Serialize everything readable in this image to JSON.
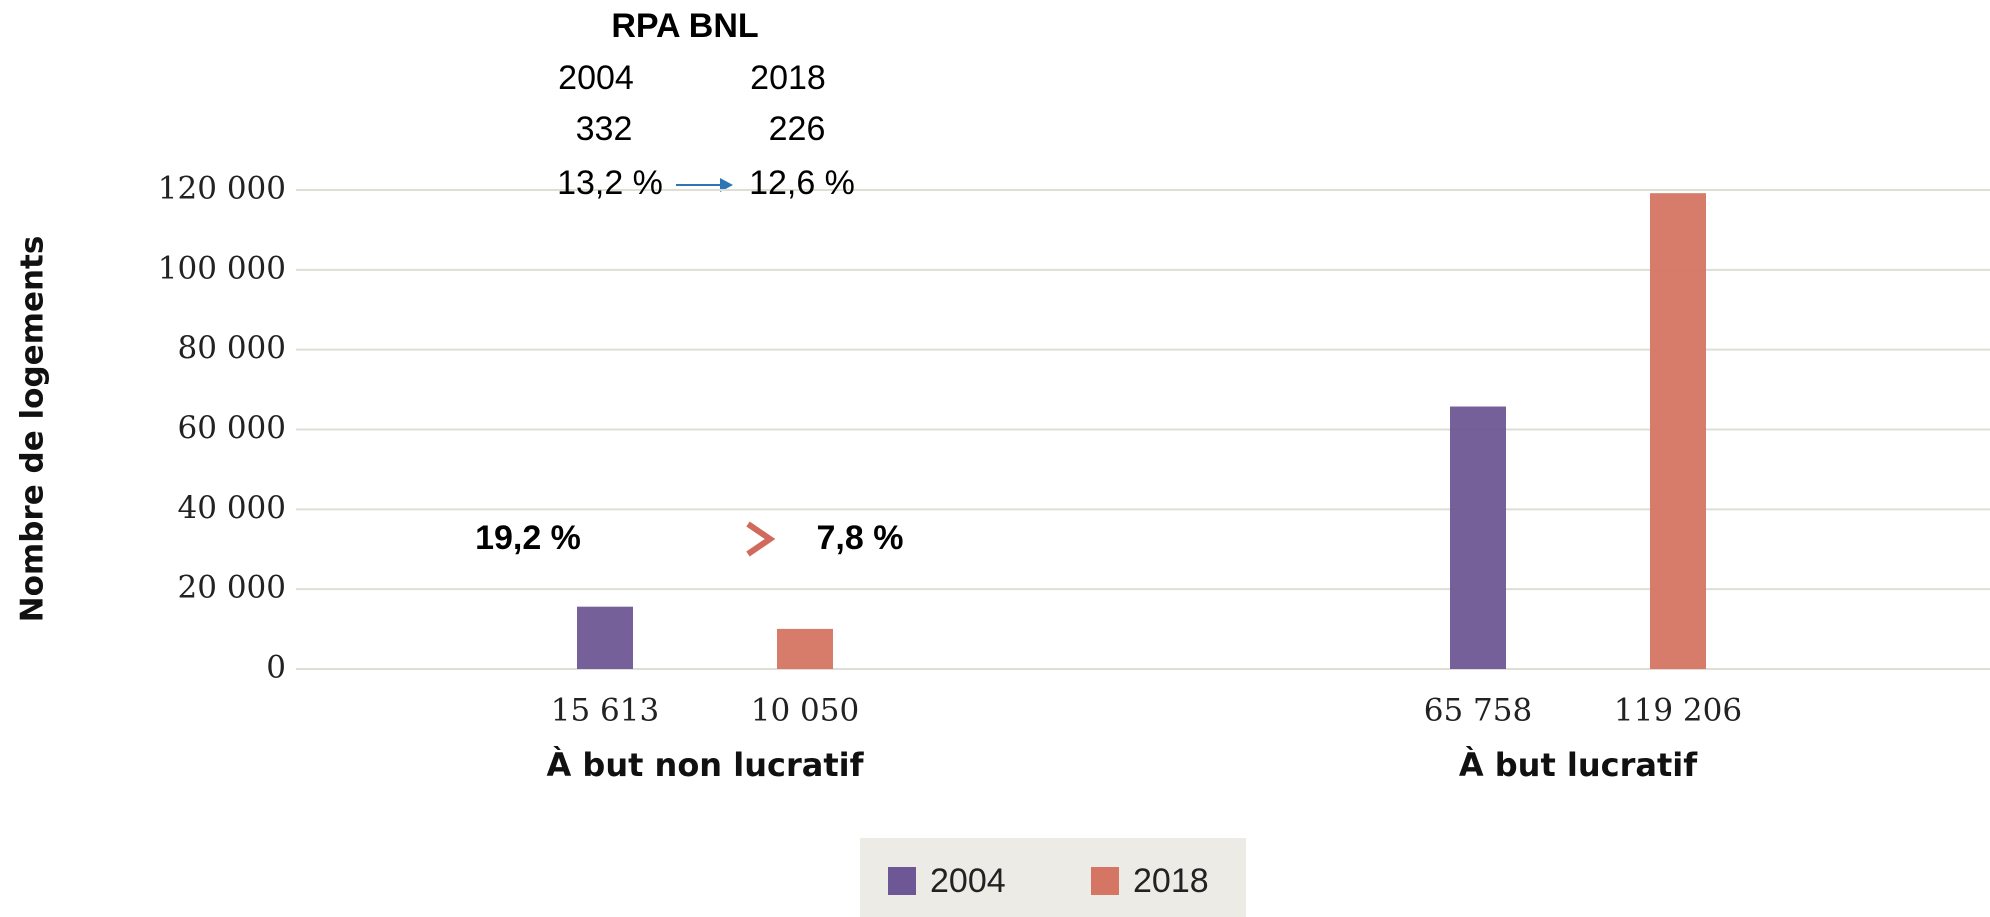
{
  "chart_data": {
    "type": "bar",
    "y_label": "Nombre de logements",
    "categories": [
      "À but non lucratif",
      "À but lucratif"
    ],
    "series": [
      {
        "name": "2004",
        "color": "#6e5795",
        "values": [
          15613,
          65758
        ],
        "value_labels": [
          "15 613",
          "65 758"
        ]
      },
      {
        "name": "2018",
        "color": "#d57563",
        "values": [
          10050,
          119206
        ],
        "value_labels": [
          "10 050",
          "119 206"
        ]
      }
    ],
    "ylim": [
      0,
      120000
    ],
    "yticks": [
      0,
      {
        "value": 20000,
        "label": "20 000"
      },
      {
        "value": 40000,
        "label": "40 000"
      },
      {
        "value": 60000,
        "label": "60 000"
      },
      {
        "value": 80000,
        "label": "80 000"
      },
      {
        "value": 100000,
        "label": "100 000"
      },
      {
        "value": 120000,
        "label": "120 000"
      }
    ],
    "grid": true,
    "legend": "bottom",
    "annotations": [
      "RPA BNL",
      "2004",
      "2018",
      "332",
      "226",
      "13,2 %",
      "12,6 %",
      "19,2 %",
      "7,8 %"
    ]
  }
}
